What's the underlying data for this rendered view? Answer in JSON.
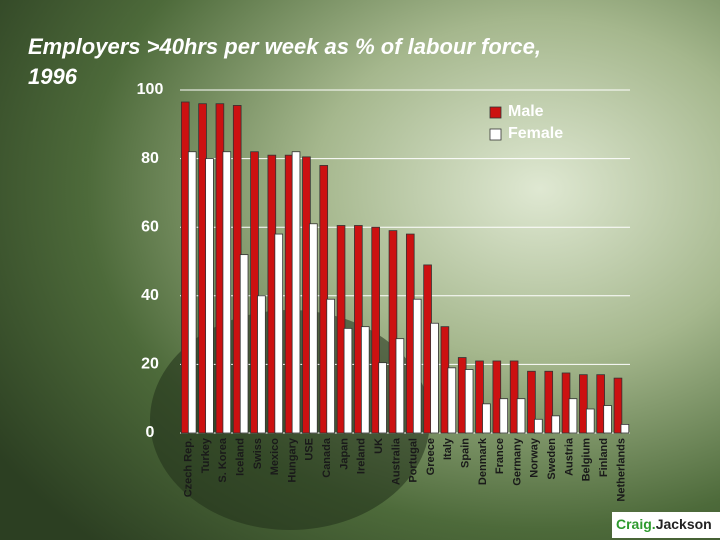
{
  "chart_data": {
    "type": "bar",
    "title": "Employers >40hrs per week as % of labour force, 1996",
    "categories": [
      "Czech Rep.",
      "Turkey",
      "S. Korea",
      "Iceland",
      "Swiss",
      "Mexico",
      "Hungary",
      "USE",
      "Canada",
      "Japan",
      "Ireland",
      "UK",
      "Australia",
      "Portugal",
      "Greece",
      "Italy",
      "Spain",
      "Denmark",
      "France",
      "Germany",
      "Norway",
      "Sweden",
      "Austria",
      "Belgium",
      "Finland",
      "Netherlands"
    ],
    "series": [
      {
        "name": "Male",
        "color": "#cc1111",
        "values": [
          96.5,
          96,
          96,
          95.5,
          82,
          81,
          81,
          80.5,
          78,
          60.5,
          60.5,
          60,
          59,
          58,
          49,
          31,
          22,
          21,
          21,
          21,
          18,
          18,
          17.5,
          17,
          17,
          16
        ]
      },
      {
        "name": "Female",
        "color": "#ffffff",
        "values": [
          82,
          80,
          82,
          52,
          40,
          58,
          82,
          61,
          39,
          30.5,
          31,
          20.5,
          27.5,
          39,
          32,
          19,
          18.5,
          8.5,
          10,
          10,
          4,
          5,
          10,
          7,
          8,
          2.5
        ]
      }
    ],
    "ylim": [
      0,
      100
    ],
    "yticks": [
      0,
      20,
      40,
      60,
      80,
      100
    ],
    "grid": true,
    "legend": "top-right"
  },
  "logo": {
    "first": "Craig.",
    "second": "Jackson"
  }
}
